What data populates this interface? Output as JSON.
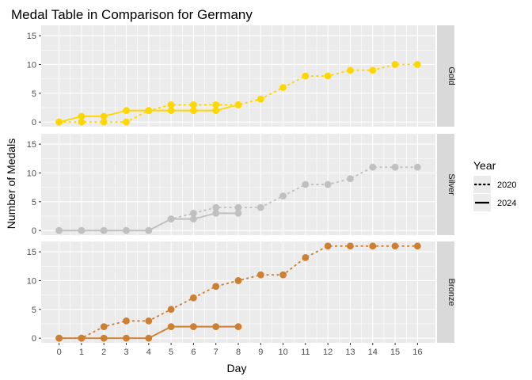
{
  "chart_data": {
    "type": "line",
    "title": "Medal Table in Comparison for Germany",
    "xlabel": "Day",
    "ylabel": "Number of Medals",
    "x": [
      0,
      1,
      2,
      3,
      4,
      5,
      6,
      7,
      8,
      9,
      10,
      11,
      12,
      13,
      14,
      15,
      16
    ],
    "x_tick_labels": [
      "0",
      "1",
      "2",
      "3",
      "4",
      "5",
      "6",
      "7",
      "8",
      "9",
      "10",
      "11",
      "12",
      "13",
      "14",
      "15",
      "16"
    ],
    "xlim": [
      -0.8,
      16.8
    ],
    "ylim": [
      -0.8,
      16.8
    ],
    "y_ticks": [
      0,
      5,
      10,
      15
    ],
    "y_tick_labels": [
      "0",
      "5",
      "10",
      "15"
    ],
    "grid": true,
    "legend": {
      "title": "Year",
      "position": "right",
      "entries": [
        {
          "label": "2020",
          "linetype": "dotted"
        },
        {
          "label": "2024",
          "linetype": "solid"
        }
      ]
    },
    "panels": [
      {
        "strip": "Gold",
        "color": "#FFD700",
        "series": [
          {
            "name": "2020",
            "linetype": "dotted",
            "x": [
              0,
              1,
              2,
              3,
              4,
              5,
              6,
              7,
              8,
              9,
              10,
              11,
              12,
              13,
              14,
              15,
              16
            ],
            "y": [
              0,
              0,
              0,
              0,
              2,
              3,
              3,
              3,
              3,
              4,
              6,
              8,
              8,
              9,
              9,
              10,
              10
            ]
          },
          {
            "name": "2024",
            "linetype": "solid",
            "x": [
              0,
              1,
              2,
              3,
              4,
              5,
              6,
              7,
              8
            ],
            "y": [
              0,
              1,
              1,
              2,
              2,
              2,
              2,
              2,
              3
            ]
          }
        ]
      },
      {
        "strip": "Silver",
        "color": "#C0C0C0",
        "series": [
          {
            "name": "2020",
            "linetype": "dotted",
            "x": [
              0,
              1,
              2,
              3,
              4,
              5,
              6,
              7,
              8,
              9,
              10,
              11,
              12,
              13,
              14,
              15,
              16
            ],
            "y": [
              0,
              0,
              0,
              0,
              0,
              2,
              3,
              4,
              4,
              4,
              6,
              8,
              8,
              9,
              11,
              11,
              11
            ]
          },
          {
            "name": "2024",
            "linetype": "solid",
            "x": [
              0,
              1,
              2,
              3,
              4,
              5,
              6,
              7,
              8
            ],
            "y": [
              0,
              0,
              0,
              0,
              0,
              2,
              2,
              3,
              3
            ]
          }
        ]
      },
      {
        "strip": "Bronze",
        "color": "#CD7F32",
        "series": [
          {
            "name": "2020",
            "linetype": "dotted",
            "x": [
              0,
              1,
              2,
              3,
              4,
              5,
              6,
              7,
              8,
              9,
              10,
              11,
              12,
              13,
              14,
              15,
              16
            ],
            "y": [
              0,
              0,
              2,
              3,
              3,
              5,
              7,
              9,
              10,
              11,
              11,
              14,
              16,
              16,
              16,
              16,
              16
            ]
          },
          {
            "name": "2024",
            "linetype": "solid",
            "x": [
              0,
              1,
              2,
              3,
              4,
              5,
              6,
              7,
              8
            ],
            "y": [
              0,
              0,
              0,
              0,
              0,
              2,
              2,
              2,
              2
            ]
          }
        ]
      }
    ]
  }
}
